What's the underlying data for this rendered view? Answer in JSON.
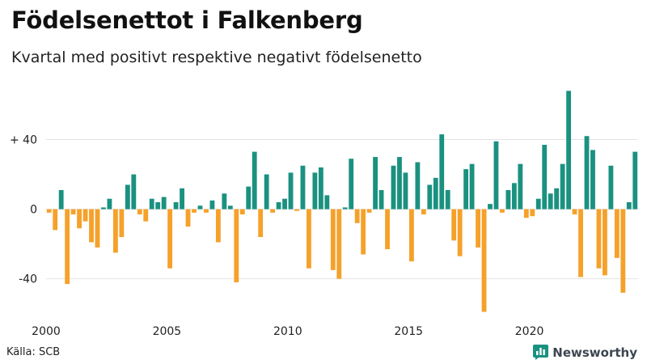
{
  "chart_data": {
    "type": "bar",
    "title": "Födelsenettot i Falkenberg",
    "subtitle": "Kvartal med positivt respektive negativt födelsenetto",
    "xlabel": "",
    "ylabel": "",
    "x_start_year": 2000,
    "periods_per_year": 4,
    "ylim": [
      -62,
      70
    ],
    "y_ticks": [
      {
        "value": 40,
        "label": "+ 40"
      },
      {
        "value": 0,
        "label": "0"
      },
      {
        "value": -40,
        "label": "-40"
      }
    ],
    "x_ticks": [
      {
        "year": 2000,
        "label": "2000"
      },
      {
        "year": 2005,
        "label": "2005"
      },
      {
        "year": 2010,
        "label": "2010"
      },
      {
        "year": 2015,
        "label": "2015"
      },
      {
        "year": 2020,
        "label": "2020"
      }
    ],
    "values": [
      -2,
      -12,
      11,
      -43,
      -3,
      -11,
      -7,
      -19,
      -22,
      1,
      6,
      -25,
      -16,
      14,
      20,
      -3,
      -7,
      6,
      4,
      7,
      -34,
      4,
      12,
      -10,
      -2,
      2,
      -2,
      5,
      -19,
      9,
      2,
      -42,
      -3,
      13,
      33,
      -16,
      20,
      -2,
      4,
      6,
      21,
      -1,
      25,
      -34,
      21,
      24,
      8,
      -35,
      -40,
      1,
      29,
      -8,
      -26,
      -2,
      30,
      11,
      -23,
      25,
      30,
      21,
      -30,
      27,
      -3,
      14,
      18,
      43,
      11,
      -18,
      -27,
      23,
      26,
      -22,
      -59,
      3,
      39,
      -2,
      11,
      15,
      26,
      -5,
      -4,
      6,
      37,
      9,
      12,
      26,
      68,
      -3,
      -39,
      42,
      34,
      -34,
      -38,
      25,
      -28,
      -48,
      4,
      33
    ],
    "colors": {
      "positive": "#1b9180",
      "negative": "#f5a12a"
    }
  },
  "footer": {
    "source": "Källa: SCB",
    "brand": "Newsworthy"
  },
  "colors": {
    "brand": "#1b9180",
    "grid": "#e3e3e3"
  }
}
